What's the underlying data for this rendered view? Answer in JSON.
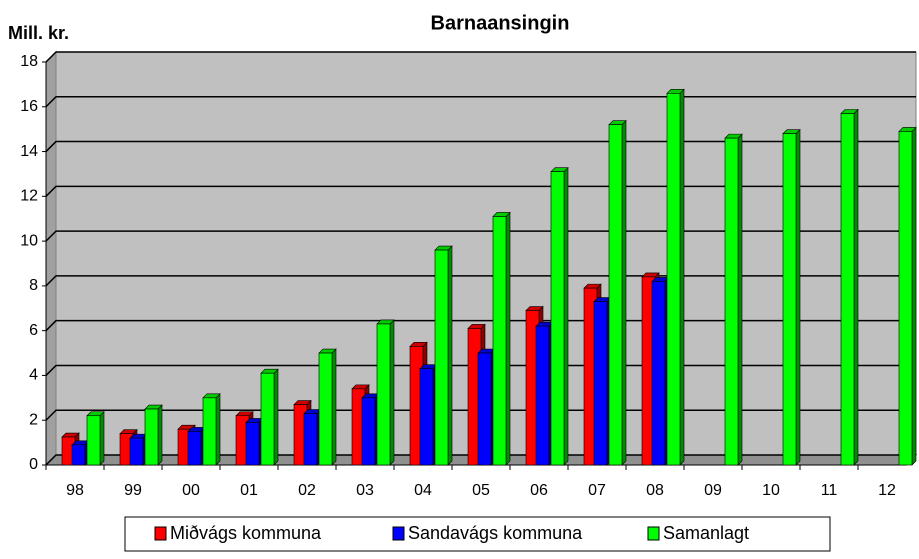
{
  "chart_data": {
    "type": "bar3d",
    "title": "Barnaansingin",
    "y_label": "Mill. kr.",
    "categories": [
      "98",
      "99",
      "00",
      "01",
      "02",
      "03",
      "04",
      "05",
      "06",
      "07",
      "08",
      "09",
      "10",
      "11",
      "12"
    ],
    "series": [
      {
        "name": "Miðvágs kommuna",
        "color": "#ff0000",
        "values": [
          1.25,
          1.4,
          1.6,
          2.2,
          2.7,
          3.4,
          5.3,
          6.1,
          6.9,
          7.9,
          8.4,
          null,
          null,
          null,
          null
        ]
      },
      {
        "name": "Sandavágs kommuna",
        "color": "#0000ff",
        "values": [
          0.9,
          1.2,
          1.5,
          1.9,
          2.3,
          3.0,
          4.3,
          5.0,
          6.2,
          7.3,
          8.2,
          null,
          null,
          null,
          null
        ]
      },
      {
        "name": "Samanlagt",
        "color": "#00ff00",
        "values": [
          2.2,
          2.5,
          3.0,
          4.1,
          5.0,
          6.3,
          9.6,
          11.1,
          13.1,
          15.2,
          16.6,
          14.6,
          14.8,
          15.7,
          14.9
        ]
      }
    ],
    "ylim": [
      0,
      18
    ],
    "yticks": [
      0,
      2,
      4,
      6,
      8,
      10,
      12,
      14,
      16,
      18
    ],
    "grid": true,
    "legend": "bottom"
  }
}
